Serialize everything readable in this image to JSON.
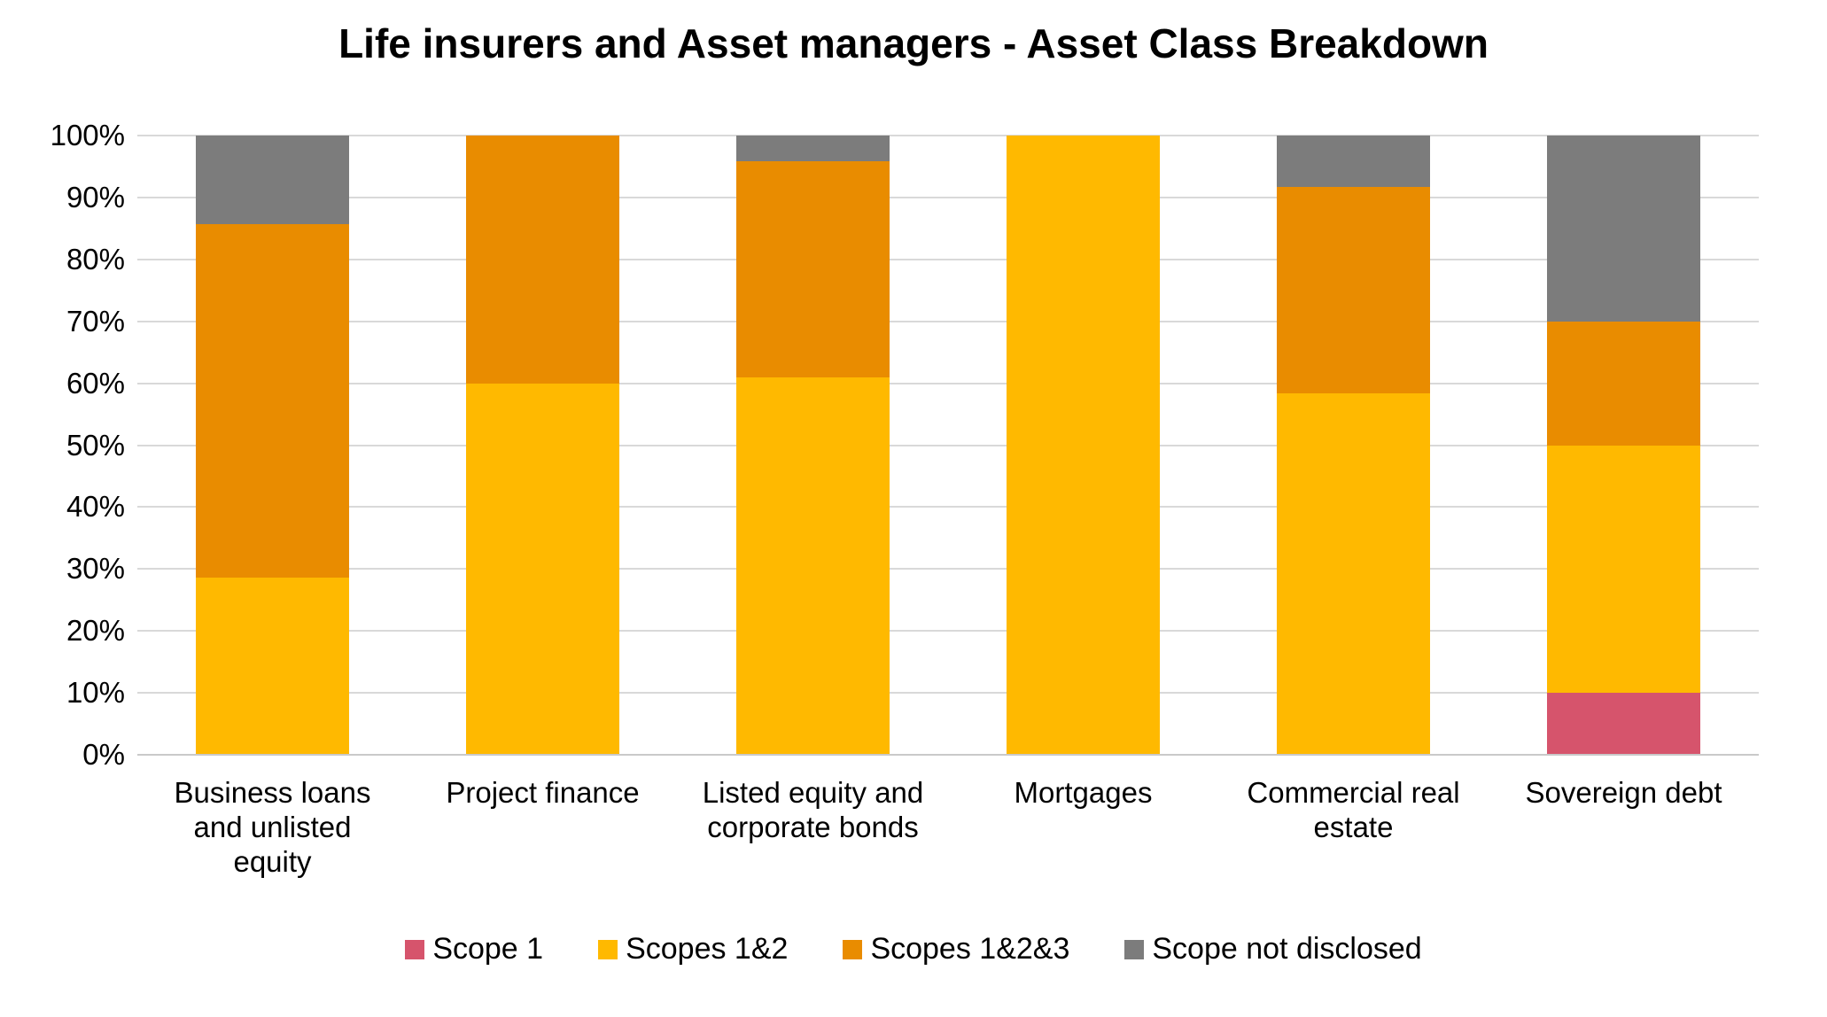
{
  "chart_data": {
    "type": "bar",
    "stacked": true,
    "percent_scale": true,
    "title": "Life insurers and Asset managers - Asset Class Breakdown",
    "categories": [
      "Business loans and unlisted equity",
      "Project finance",
      "Listed equity and corporate bonds",
      "Mortgages",
      "Commercial real estate",
      "Sovereign debt"
    ],
    "series": [
      {
        "name": "Scope 1",
        "color": "#D6546C",
        "values": [
          0,
          0,
          0,
          0,
          0,
          10
        ]
      },
      {
        "name": "Scopes 1&2",
        "color": "#FFB900",
        "values": [
          28.6,
          60,
          61,
          100,
          58.3,
          40
        ]
      },
      {
        "name": "Scopes 1&2&3",
        "color": "#E98C00",
        "values": [
          57.1,
          40,
          34.8,
          0,
          33.4,
          20
        ]
      },
      {
        "name": "Scope not disclosed",
        "color": "#7C7C7C",
        "values": [
          14.3,
          0,
          4.2,
          0,
          8.3,
          30
        ]
      }
    ],
    "xlabel": "",
    "ylabel": "",
    "ylim": [
      0,
      100
    ],
    "yticks": [
      "0%",
      "10%",
      "20%",
      "30%",
      "40%",
      "50%",
      "60%",
      "70%",
      "80%",
      "90%",
      "100%"
    ],
    "grid": true,
    "gridline_color": "#D9D9D9",
    "axis_line_color": "#C9C9C9",
    "background_color": "#FFFFFF",
    "text_color": "#000000",
    "legend_position": "bottom",
    "legend": [
      "Scope 1",
      "Scopes 1&2",
      "Scopes 1&2&3",
      "Scope not disclosed"
    ]
  }
}
